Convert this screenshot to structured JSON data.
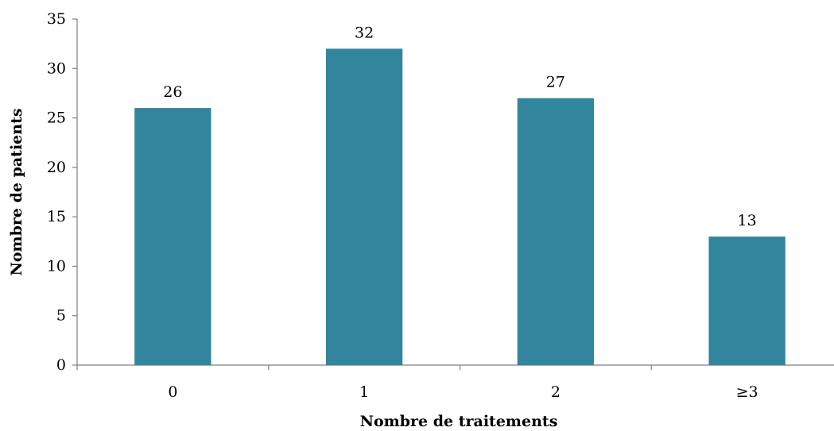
{
  "chart_data": {
    "type": "bar",
    "title": "",
    "xlabel": "Nombre de traitements",
    "ylabel": "Nombre de patients",
    "categories": [
      "0",
      "1",
      "2",
      "≥3"
    ],
    "values": [
      26,
      32,
      27,
      13
    ],
    "data_labels": [
      "26",
      "32",
      "27",
      "13"
    ],
    "yticks": [
      "0",
      "5",
      "10",
      "15",
      "20",
      "25",
      "30",
      "35"
    ],
    "ylim": [
      0,
      35
    ],
    "grid": false,
    "legend": "none",
    "bar_color": "#31859c"
  }
}
